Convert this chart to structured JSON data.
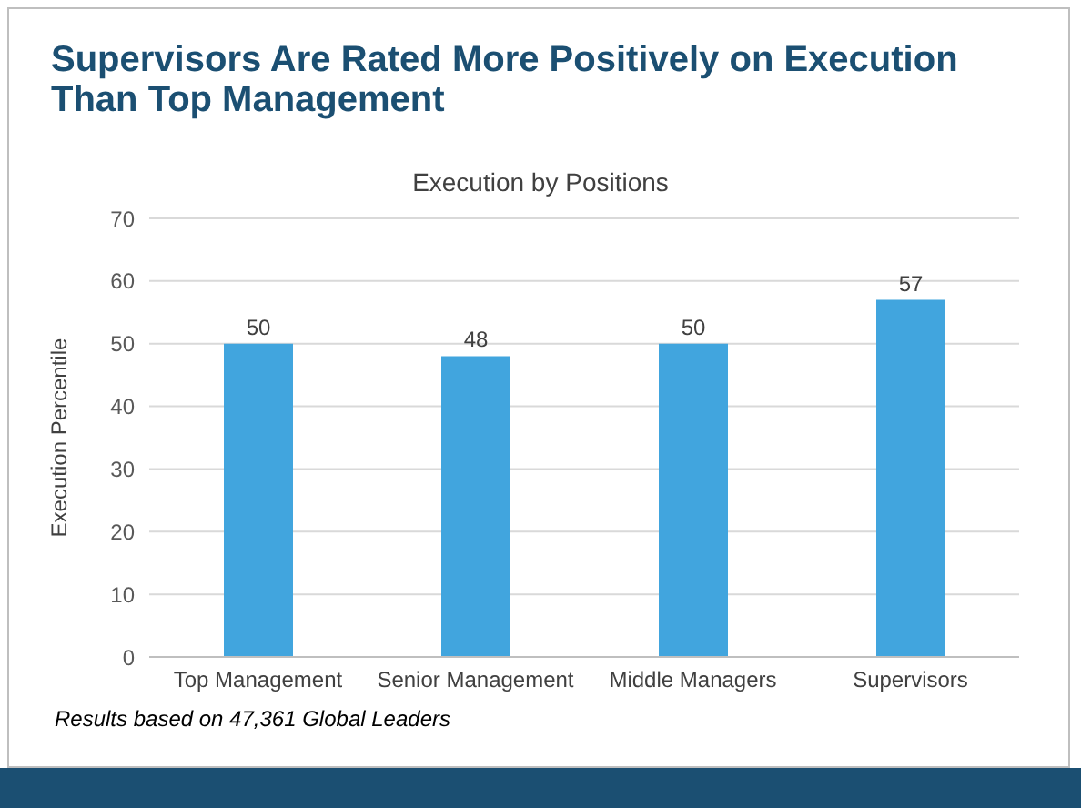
{
  "chart_data": {
    "type": "bar",
    "title": "Supervisors Are Rated More Positively on Execution Than Top Management",
    "subtitle": "Execution by Positions",
    "ylabel": "Execution Percentile",
    "categories": [
      "Top Management",
      "Senior Management",
      "Middle Managers",
      "Supervisors"
    ],
    "values": [
      50,
      48,
      50,
      57
    ],
    "color": "#41a5de",
    "ylim": [
      0,
      70
    ],
    "yticks": [
      0,
      10,
      20,
      30,
      40,
      50,
      60,
      70
    ],
    "grid": "y",
    "data_labels": true,
    "annotations": [
      "Results based on 47,361 Global Leaders"
    ]
  }
}
